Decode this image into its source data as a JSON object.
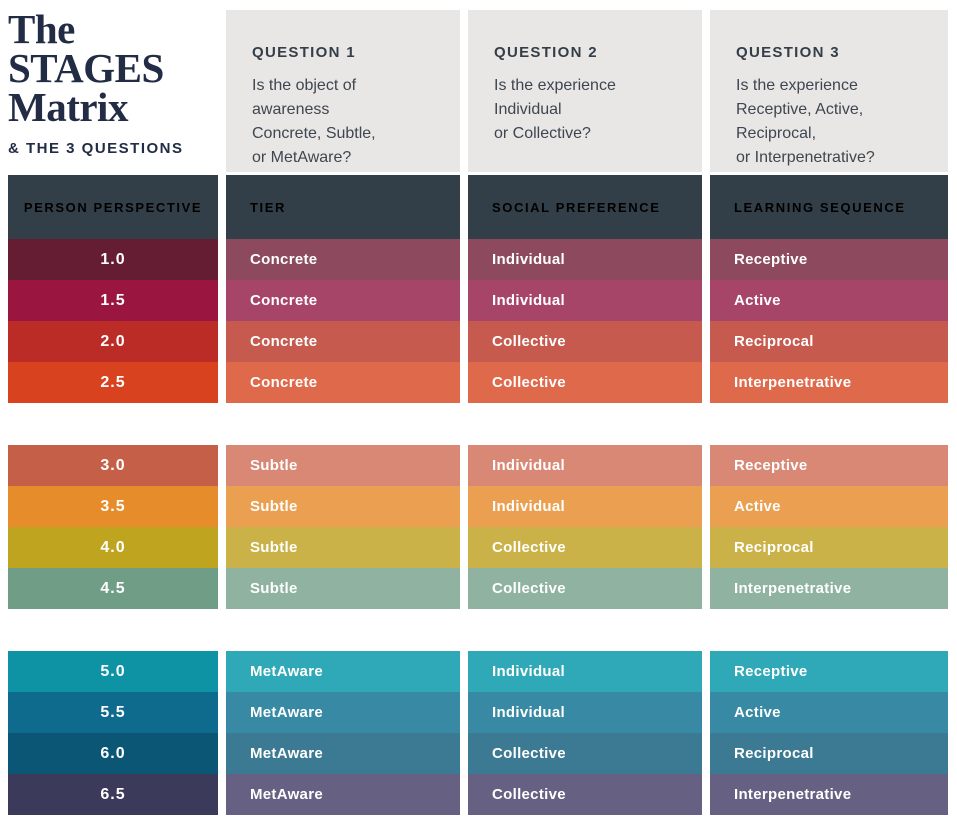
{
  "brand": {
    "title_lines": [
      "The",
      "STAGES",
      "Matrix"
    ],
    "subtitle": "& THE 3 QUESTIONS"
  },
  "questions": [
    {
      "label": "QUESTION 1",
      "text": "Is the object of\nawareness\nConcrete, Subtle,\nor MetAware?"
    },
    {
      "label": "QUESTION 2",
      "text": "Is the experience\nIndividual\nor Collective?"
    },
    {
      "label": "QUESTION 3",
      "text": "Is the experience\nReceptive, Active,\nReciprocal,\nor Interpenetrative?"
    }
  ],
  "columns": {
    "person_perspective": "PERSON PERSPECTIVE",
    "tier": "TIER",
    "social_preference": "SOCIAL PREFERENCE",
    "learning_sequence": "LEARNING SEQUENCE"
  },
  "colors": {
    "title_text": "#222c45",
    "question_label_text": "#333e48",
    "question_body_text": "#3e4650",
    "panel_bg": "#e9e7e5",
    "header_bg": "#333f48",
    "header_text": "#b3bac0",
    "row_text": "#ffffff"
  },
  "groups": [
    {
      "name": "concrete",
      "rows": [
        {
          "person_perspective": "1.0",
          "tier": "Concrete",
          "social_preference": "Individual",
          "learning_sequence": "Receptive",
          "color_primary": "#651d34",
          "color_muted": "#8d4a5e"
        },
        {
          "person_perspective": "1.5",
          "tier": "Concrete",
          "social_preference": "Individual",
          "learning_sequence": "Active",
          "color_primary": "#9a1540",
          "color_muted": "#a64568"
        },
        {
          "person_perspective": "2.0",
          "tier": "Concrete",
          "social_preference": "Collective",
          "learning_sequence": "Reciprocal",
          "color_primary": "#bb2c26",
          "color_muted": "#c65a4e"
        },
        {
          "person_perspective": "2.5",
          "tier": "Concrete",
          "social_preference": "Collective",
          "learning_sequence": "Interpenetrative",
          "color_primary": "#d9421e",
          "color_muted": "#df694b"
        }
      ]
    },
    {
      "name": "subtle",
      "rows": [
        {
          "person_perspective": "3.0",
          "tier": "Subtle",
          "social_preference": "Individual",
          "learning_sequence": "Receptive",
          "color_primary": "#c65f47",
          "color_muted": "#d98876"
        },
        {
          "person_perspective": "3.5",
          "tier": "Subtle",
          "social_preference": "Individual",
          "learning_sequence": "Active",
          "color_primary": "#e78c2b",
          "color_muted": "#eb9f50"
        },
        {
          "person_perspective": "4.0",
          "tier": "Subtle",
          "social_preference": "Collective",
          "learning_sequence": "Reciprocal",
          "color_primary": "#bea41f",
          "color_muted": "#cbb248"
        },
        {
          "person_perspective": "4.5",
          "tier": "Subtle",
          "social_preference": "Collective",
          "learning_sequence": "Interpenetrative",
          "color_primary": "#6f9d85",
          "color_muted": "#90b3a1"
        }
      ]
    },
    {
      "name": "metaware",
      "rows": [
        {
          "person_perspective": "5.0",
          "tier": "MetAware",
          "social_preference": "Individual",
          "learning_sequence": "Receptive",
          "color_primary": "#0e93a5",
          "color_muted": "#2fa9b8"
        },
        {
          "person_perspective": "5.5",
          "tier": "MetAware",
          "social_preference": "Individual",
          "learning_sequence": "Active",
          "color_primary": "#0f6b8d",
          "color_muted": "#3889a3"
        },
        {
          "person_perspective": "6.0",
          "tier": "MetAware",
          "social_preference": "Collective",
          "learning_sequence": "Reciprocal",
          "color_primary": "#0b5674",
          "color_muted": "#3c7a93"
        },
        {
          "person_perspective": "6.5",
          "tier": "MetAware",
          "social_preference": "Collective",
          "learning_sequence": "Interpenetrative",
          "color_primary": "#3b3a5a",
          "color_muted": "#666082"
        }
      ]
    }
  ]
}
